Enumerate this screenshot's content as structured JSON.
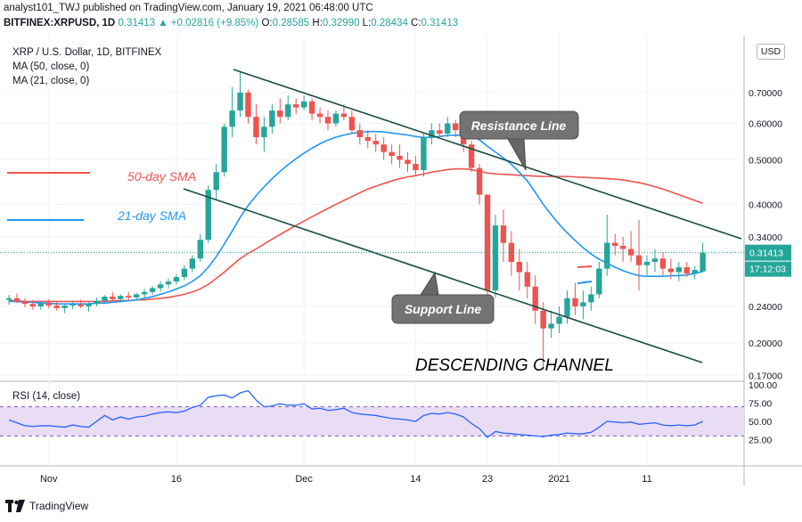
{
  "header": {
    "line1": "analyst101_TWJ published on TradingView.com, January 19, 2021 06:48:00 UTC",
    "symbol": "BITFINEX:XRPUSD, 1D",
    "change": "0.31413 ▲ +0.02816 (+9.85%)",
    "o_label": "O:",
    "o": "0.28585",
    "h_label": "H:",
    "h": "0.32990",
    "l_label": "L:",
    "l": "0.28434",
    "c_label": "C:",
    "c": "0.31413"
  },
  "legend": {
    "title": "XRP / U.S. Dollar, 1D, BITFINEX",
    "ma50": "MA (50, close, 0)",
    "ma21": "MA (21, close, 0)"
  },
  "currency_button": "USD",
  "annotations": {
    "sma50": "50-day SMA",
    "sma21": "21-day SMA",
    "resistance": "Resistance Line",
    "support": "Support Line",
    "channel": "DESCENDING CHANNEL"
  },
  "price_badges": {
    "last": "0.31413",
    "countdown": "17:12:03"
  },
  "rsi": {
    "label": "RSI (14, close)"
  },
  "footer": {
    "brand": "TradingView"
  },
  "colors": {
    "up": "#26a69a",
    "down": "#ef5350",
    "ma50": "#ef5350",
    "ma21": "#2196f3",
    "channel": "#1b4d3e",
    "rsi_line": "#2962ff",
    "rsi_band": "#e9dcf5",
    "last_price": "#26a69a"
  },
  "chart_data": [
    {
      "type": "candlestick",
      "title": "XRP / U.S. Dollar, 1D, BITFINEX",
      "y_scale": "log",
      "y_ticks": [
        "0.70000",
        "0.60000",
        "0.50000",
        "0.40000",
        "0.34000",
        "0.24000",
        "0.20000",
        "0.17000"
      ],
      "x_ticks": [
        "Nov",
        "16",
        "Dec",
        "14",
        "23",
        "2021",
        "11"
      ],
      "candles": [
        [
          0.248,
          0.254,
          0.242,
          0.25
        ],
        [
          0.25,
          0.256,
          0.244,
          0.246
        ],
        [
          0.246,
          0.25,
          0.239,
          0.243
        ],
        [
          0.243,
          0.248,
          0.236,
          0.24
        ],
        [
          0.24,
          0.246,
          0.236,
          0.244
        ],
        [
          0.244,
          0.249,
          0.238,
          0.241
        ],
        [
          0.241,
          0.246,
          0.235,
          0.238
        ],
        [
          0.238,
          0.243,
          0.232,
          0.241
        ],
        [
          0.241,
          0.247,
          0.237,
          0.242
        ],
        [
          0.242,
          0.248,
          0.238,
          0.24
        ],
        [
          0.24,
          0.245,
          0.234,
          0.243
        ],
        [
          0.243,
          0.251,
          0.24,
          0.247
        ],
        [
          0.247,
          0.254,
          0.243,
          0.252
        ],
        [
          0.252,
          0.258,
          0.246,
          0.249
        ],
        [
          0.249,
          0.255,
          0.245,
          0.253
        ],
        [
          0.253,
          0.258,
          0.248,
          0.251
        ],
        [
          0.251,
          0.257,
          0.247,
          0.255
        ],
        [
          0.255,
          0.262,
          0.25,
          0.258
        ],
        [
          0.258,
          0.266,
          0.254,
          0.263
        ],
        [
          0.263,
          0.272,
          0.258,
          0.268
        ],
        [
          0.268,
          0.276,
          0.263,
          0.272
        ],
        [
          0.272,
          0.282,
          0.268,
          0.278
        ],
        [
          0.278,
          0.295,
          0.274,
          0.29
        ],
        [
          0.29,
          0.31,
          0.285,
          0.305
        ],
        [
          0.305,
          0.345,
          0.3,
          0.335
        ],
        [
          0.335,
          0.44,
          0.33,
          0.43
        ],
        [
          0.43,
          0.49,
          0.41,
          0.47
        ],
        [
          0.47,
          0.6,
          0.46,
          0.59
        ],
        [
          0.59,
          0.72,
          0.56,
          0.64
        ],
        [
          0.64,
          0.78,
          0.62,
          0.7
        ],
        [
          0.7,
          0.71,
          0.6,
          0.62
        ],
        [
          0.62,
          0.66,
          0.54,
          0.56
        ],
        [
          0.56,
          0.62,
          0.52,
          0.59
        ],
        [
          0.59,
          0.66,
          0.57,
          0.64
        ],
        [
          0.64,
          0.68,
          0.6,
          0.62
        ],
        [
          0.62,
          0.69,
          0.61,
          0.66
        ],
        [
          0.66,
          0.68,
          0.63,
          0.65
        ],
        [
          0.65,
          0.69,
          0.64,
          0.67
        ],
        [
          0.67,
          0.68,
          0.61,
          0.63
        ],
        [
          0.63,
          0.65,
          0.6,
          0.62
        ],
        [
          0.62,
          0.64,
          0.58,
          0.6
        ],
        [
          0.6,
          0.64,
          0.59,
          0.63
        ],
        [
          0.63,
          0.66,
          0.61,
          0.62
        ],
        [
          0.62,
          0.64,
          0.57,
          0.58
        ],
        [
          0.58,
          0.6,
          0.54,
          0.56
        ],
        [
          0.56,
          0.58,
          0.53,
          0.55
        ],
        [
          0.55,
          0.57,
          0.52,
          0.54
        ],
        [
          0.54,
          0.56,
          0.5,
          0.52
        ],
        [
          0.52,
          0.54,
          0.49,
          0.51
        ],
        [
          0.51,
          0.54,
          0.48,
          0.5
        ],
        [
          0.5,
          0.52,
          0.47,
          0.49
        ],
        [
          0.49,
          0.51,
          0.46,
          0.475
        ],
        [
          0.475,
          0.57,
          0.46,
          0.56
        ],
        [
          0.56,
          0.6,
          0.54,
          0.58
        ],
        [
          0.58,
          0.6,
          0.56,
          0.57
        ],
        [
          0.57,
          0.62,
          0.56,
          0.6
        ],
        [
          0.6,
          0.61,
          0.56,
          0.58
        ],
        [
          0.58,
          0.59,
          0.52,
          0.54
        ],
        [
          0.54,
          0.55,
          0.47,
          0.48
        ],
        [
          0.48,
          0.49,
          0.4,
          0.42
        ],
        [
          0.42,
          0.42,
          0.24,
          0.26
        ],
        [
          0.26,
          0.38,
          0.25,
          0.36
        ],
        [
          0.36,
          0.39,
          0.3,
          0.33
        ],
        [
          0.33,
          0.35,
          0.28,
          0.3
        ],
        [
          0.3,
          0.32,
          0.26,
          0.285
        ],
        [
          0.285,
          0.3,
          0.25,
          0.265
        ],
        [
          0.265,
          0.28,
          0.22,
          0.235
        ],
        [
          0.235,
          0.245,
          0.175,
          0.215
        ],
        [
          0.215,
          0.235,
          0.205,
          0.22
        ],
        [
          0.22,
          0.24,
          0.21,
          0.228
        ],
        [
          0.228,
          0.26,
          0.22,
          0.25
        ],
        [
          0.25,
          0.27,
          0.23,
          0.24
        ],
        [
          0.24,
          0.26,
          0.225,
          0.245
        ],
        [
          0.245,
          0.265,
          0.235,
          0.255
        ],
        [
          0.255,
          0.3,
          0.25,
          0.29
        ],
        [
          0.29,
          0.38,
          0.28,
          0.33
        ],
        [
          0.33,
          0.345,
          0.31,
          0.325
        ],
        [
          0.325,
          0.34,
          0.3,
          0.32
        ],
        [
          0.32,
          0.35,
          0.3,
          0.31
        ],
        [
          0.31,
          0.37,
          0.26,
          0.295
        ],
        [
          0.295,
          0.31,
          0.28,
          0.3
        ],
        [
          0.3,
          0.32,
          0.285,
          0.305
        ],
        [
          0.305,
          0.315,
          0.28,
          0.29
        ],
        [
          0.29,
          0.305,
          0.275,
          0.285
        ],
        [
          0.285,
          0.3,
          0.272,
          0.292
        ],
        [
          0.292,
          0.3,
          0.278,
          0.283
        ],
        [
          0.283,
          0.294,
          0.275,
          0.288
        ],
        [
          0.286,
          0.33,
          0.284,
          0.314
        ]
      ],
      "ma50": [
        0.247,
        0.247,
        0.246,
        0.246,
        0.246,
        0.246,
        0.246,
        0.246,
        0.246,
        0.246,
        0.246,
        0.246,
        0.246,
        0.247,
        0.247,
        0.247,
        0.248,
        0.248,
        0.249,
        0.25,
        0.251,
        0.253,
        0.255,
        0.258,
        0.262,
        0.268,
        0.276,
        0.285,
        0.295,
        0.305,
        0.313,
        0.32,
        0.328,
        0.336,
        0.344,
        0.352,
        0.36,
        0.368,
        0.376,
        0.384,
        0.392,
        0.4,
        0.408,
        0.416,
        0.424,
        0.432,
        0.438,
        0.444,
        0.45,
        0.455,
        0.459,
        0.462,
        0.466,
        0.47,
        0.473,
        0.476,
        0.478,
        0.478,
        0.476,
        0.472,
        0.468,
        0.466,
        0.465,
        0.464,
        0.463,
        0.462,
        0.461,
        0.46,
        0.46,
        0.46,
        0.46,
        0.459,
        0.458,
        0.457,
        0.456,
        0.455,
        0.454,
        0.452,
        0.449,
        0.446,
        0.442,
        0.437,
        0.432,
        0.426,
        0.42,
        0.414,
        0.408,
        0.402
      ],
      "ma21": [
        0.246,
        0.246,
        0.245,
        0.245,
        0.244,
        0.244,
        0.243,
        0.243,
        0.243,
        0.243,
        0.243,
        0.244,
        0.244,
        0.245,
        0.246,
        0.247,
        0.248,
        0.25,
        0.252,
        0.255,
        0.258,
        0.262,
        0.266,
        0.272,
        0.28,
        0.292,
        0.308,
        0.328,
        0.35,
        0.375,
        0.398,
        0.418,
        0.437,
        0.455,
        0.472,
        0.488,
        0.503,
        0.517,
        0.53,
        0.542,
        0.552,
        0.56,
        0.566,
        0.571,
        0.574,
        0.576,
        0.576,
        0.575,
        0.572,
        0.569,
        0.566,
        0.562,
        0.559,
        0.56,
        0.562,
        0.565,
        0.566,
        0.565,
        0.561,
        0.553,
        0.535,
        0.52,
        0.505,
        0.489,
        0.47,
        0.45,
        0.425,
        0.4,
        0.38,
        0.362,
        0.347,
        0.334,
        0.322,
        0.312,
        0.304,
        0.298,
        0.292,
        0.287,
        0.283,
        0.28,
        0.279,
        0.279,
        0.279,
        0.28,
        0.28,
        0.281,
        0.283,
        0.286
      ]
    },
    {
      "type": "line",
      "title": "RSI (14, close)",
      "y_ticks": [
        "100.00",
        "75.00",
        "50.00",
        "25.00"
      ],
      "bands": [
        30,
        70
      ],
      "values": [
        52,
        48,
        44,
        43,
        44,
        44,
        43,
        42,
        45,
        43,
        42,
        50,
        58,
        52,
        56,
        53,
        56,
        57,
        60,
        62,
        63,
        62,
        64,
        69,
        72,
        83,
        85,
        86,
        82,
        89,
        92,
        79,
        70,
        71,
        74,
        72,
        72,
        74,
        67,
        68,
        65,
        66,
        68,
        62,
        60,
        59,
        58,
        56,
        54,
        53,
        52,
        50,
        58,
        61,
        60,
        62,
        60,
        56,
        47,
        40,
        28,
        36,
        34,
        33,
        32,
        31,
        30,
        29,
        31,
        32,
        34,
        33,
        33,
        35,
        42,
        50,
        49,
        48,
        49,
        46,
        47,
        48,
        45,
        44,
        45,
        44,
        45,
        50
      ]
    }
  ]
}
